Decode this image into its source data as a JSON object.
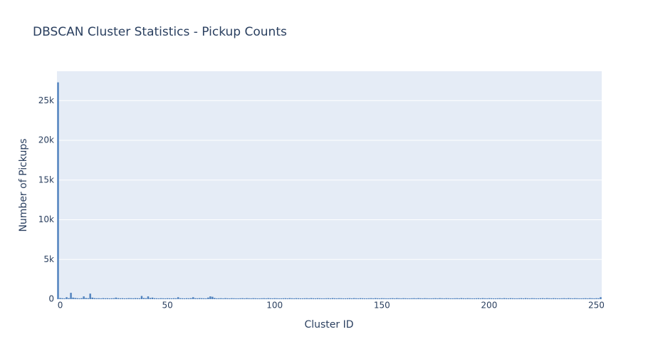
{
  "chart_data": {
    "type": "bar",
    "title": "DBSCAN Cluster Statistics - Pickup Counts",
    "x_label": "Cluster ID",
    "y_label": "Number of Pickups",
    "x": [
      -1,
      0,
      1,
      2,
      3,
      4,
      5,
      6,
      7,
      8,
      9,
      10,
      11,
      12,
      13,
      14,
      15,
      16,
      17,
      18,
      19,
      20,
      21,
      22,
      23,
      24,
      25,
      26,
      27,
      28,
      29,
      30,
      31,
      32,
      33,
      34,
      35,
      36,
      37,
      38,
      39,
      40,
      41,
      42,
      43,
      44,
      45,
      46,
      47,
      48,
      49,
      50,
      51,
      52,
      53,
      54,
      55,
      56,
      57,
      58,
      59,
      60,
      61,
      62,
      63,
      64,
      65,
      66,
      67,
      68,
      69,
      70,
      71,
      72,
      73,
      74,
      75,
      76,
      77,
      78,
      79,
      80,
      81,
      82,
      83,
      84,
      85,
      86,
      87,
      88,
      89,
      90,
      91,
      92,
      93,
      94,
      95,
      96,
      97,
      98,
      99,
      100,
      101,
      102,
      103,
      104,
      105,
      106,
      107,
      108,
      109,
      110,
      111,
      112,
      113,
      114,
      115,
      116,
      117,
      118,
      119,
      120,
      121,
      122,
      123,
      124,
      125,
      126,
      127,
      128,
      129,
      130,
      131,
      132,
      133,
      134,
      135,
      136,
      137,
      138,
      139,
      140,
      141,
      142,
      143,
      144,
      145,
      146,
      147,
      148,
      149,
      150,
      151,
      152,
      153,
      154,
      155,
      156,
      157,
      158,
      159,
      160,
      161,
      162,
      163,
      164,
      165,
      166,
      167,
      168,
      169,
      170,
      171,
      172,
      173,
      174,
      175,
      176,
      177,
      178,
      179,
      180,
      181,
      182,
      183,
      184,
      185,
      186,
      187,
      188,
      189,
      190,
      191,
      192,
      193,
      194,
      195,
      196,
      197,
      198,
      199,
      200,
      201,
      202,
      203,
      204,
      205,
      206,
      207,
      208,
      209,
      210,
      211,
      212,
      213,
      214,
      215,
      216,
      217,
      218,
      219,
      220,
      221,
      222,
      223,
      224,
      225,
      226,
      227,
      228,
      229,
      230,
      231,
      232,
      233,
      234,
      235,
      236,
      237,
      238,
      239,
      240,
      241,
      242,
      243,
      244,
      245,
      246,
      247,
      248,
      249,
      250,
      251,
      252
    ],
    "values": [
      27300,
      150,
      120,
      100,
      250,
      130,
      800,
      200,
      150,
      120,
      100,
      130,
      350,
      150,
      120,
      700,
      200,
      130,
      110,
      120,
      100,
      130,
      110,
      120,
      100,
      110,
      120,
      200,
      130,
      110,
      120,
      100,
      110,
      130,
      120,
      110,
      130,
      120,
      110,
      400,
      150,
      120,
      350,
      150,
      200,
      120,
      110,
      100,
      120,
      110,
      100,
      120,
      110,
      100,
      120,
      110,
      250,
      120,
      110,
      100,
      120,
      110,
      130,
      250,
      120,
      110,
      130,
      120,
      110,
      100,
      200,
      350,
      300,
      150,
      100,
      110,
      120,
      100,
      130,
      110,
      100,
      120,
      110,
      100,
      100,
      110,
      120,
      100,
      130,
      110,
      100,
      120,
      110,
      100,
      100,
      110,
      120,
      100,
      130,
      110,
      100,
      120,
      110,
      100,
      100,
      110,
      120,
      100,
      130,
      110,
      100,
      120,
      110,
      100,
      100,
      110,
      120,
      100,
      130,
      110,
      100,
      120,
      110,
      100,
      100,
      110,
      120,
      100,
      130,
      110,
      100,
      120,
      110,
      100,
      100,
      110,
      120,
      100,
      130,
      110,
      100,
      120,
      110,
      100,
      100,
      110,
      120,
      100,
      130,
      110,
      100,
      120,
      110,
      100,
      100,
      110,
      120,
      100,
      130,
      110,
      100,
      120,
      110,
      100,
      100,
      110,
      120,
      100,
      130,
      110,
      100,
      120,
      110,
      100,
      100,
      110,
      120,
      100,
      130,
      110,
      100,
      120,
      110,
      100,
      100,
      110,
      120,
      100,
      130,
      110,
      100,
      120,
      110,
      100,
      100,
      110,
      120,
      100,
      130,
      110,
      100,
      120,
      110,
      100,
      100,
      110,
      120,
      100,
      130,
      110,
      100,
      120,
      110,
      100,
      100,
      110,
      120,
      100,
      130,
      110,
      100,
      120,
      110,
      100,
      100,
      110,
      120,
      100,
      130,
      110,
      100,
      120,
      110,
      100,
      100,
      110,
      120,
      100,
      130,
      110,
      100,
      120,
      110,
      100,
      100,
      110,
      120,
      100,
      130,
      110,
      100,
      120,
      110,
      250
    ],
    "color": "#4f81bd",
    "xlim": [
      -1.5,
      252.5
    ],
    "xticks": [
      0,
      50,
      100,
      150,
      200,
      250
    ],
    "ylim": [
      0,
      28700
    ],
    "yticks": [
      0,
      {
        "value": 5000,
        "label": "5k"
      },
      {
        "value": 10000,
        "label": "10k"
      },
      {
        "value": 15000,
        "label": "15k"
      },
      {
        "value": 20000,
        "label": "20k"
      },
      {
        "value": 25000,
        "label": "25k"
      }
    ],
    "grid": true
  }
}
